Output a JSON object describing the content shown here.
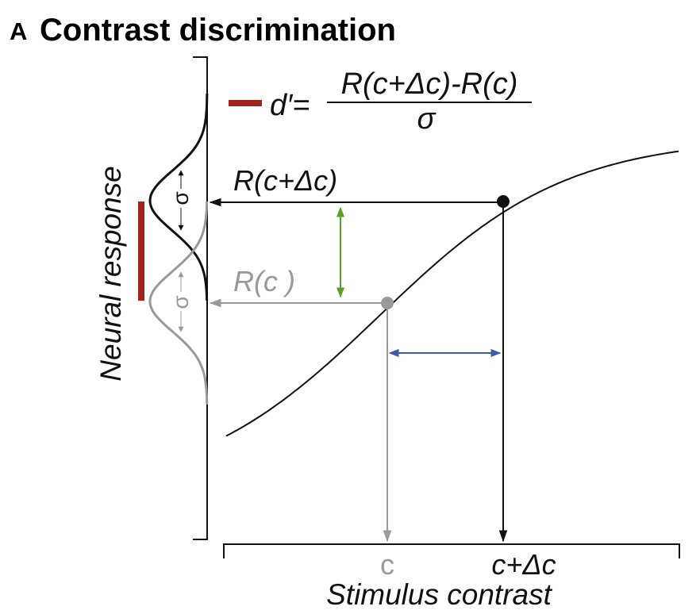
{
  "panel": {
    "letter": "A",
    "title": "Contrast discrimination"
  },
  "formula": {
    "lhs": "d′=",
    "numerator": "R(c+Δc)-R(c)",
    "denominator": "σ"
  },
  "axes": {
    "y_label": "Neural response",
    "x_label": "Stimulus contrast",
    "x_tick_c": "c",
    "x_tick_c_plus": "c+Δc"
  },
  "responses": {
    "high_label": "R(c+Δc)",
    "low_label": "R(c )"
  },
  "sigma": {
    "high_label": "σ",
    "low_label": "σ"
  },
  "colors": {
    "dprime_bar": "#a1241c",
    "low_gray": "#999999",
    "green_arrow": "#5aa12a",
    "blue_arrow": "#3f5aa8",
    "black": "#111111"
  }
}
